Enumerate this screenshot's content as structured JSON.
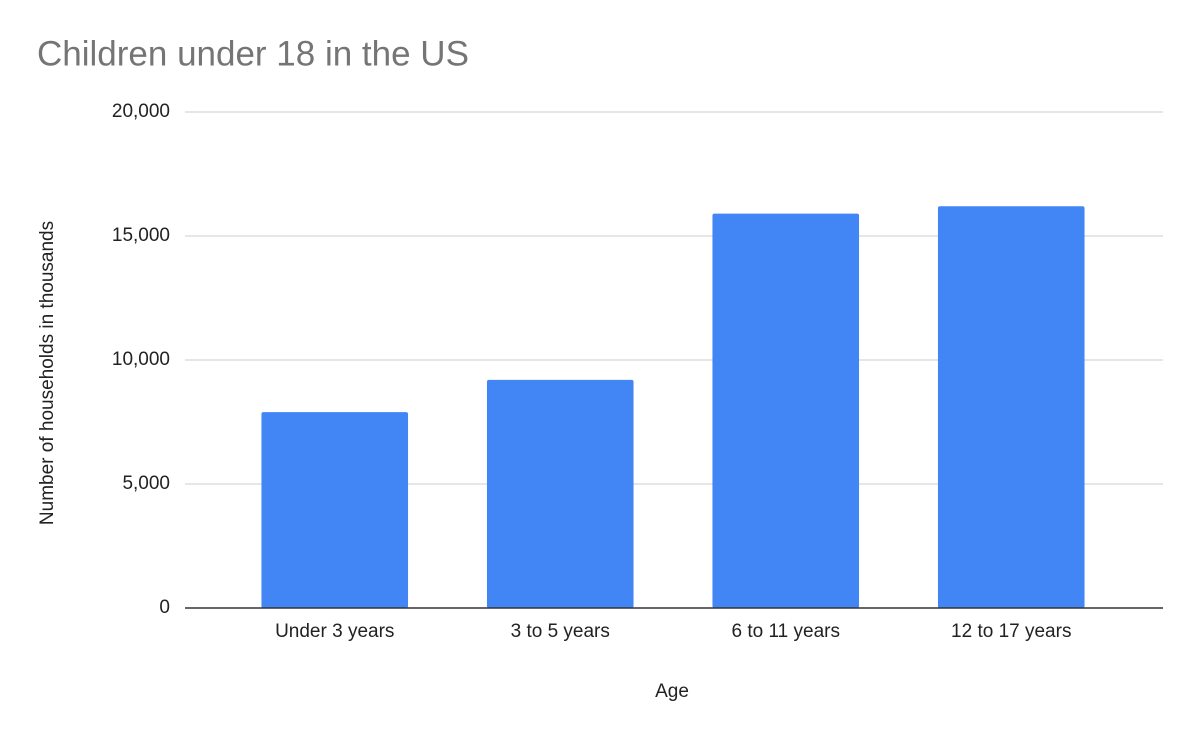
{
  "chart_data": {
    "type": "bar",
    "title": "Children under 18 in the US",
    "x_label": "Age",
    "y_label": "Number of households in thousands",
    "categories": [
      "Under 3 years",
      "3 to 5 years",
      "6 to 11 years",
      "12 to 17 years"
    ],
    "values": [
      7900,
      9200,
      15900,
      16200
    ],
    "color": "#4285f4",
    "ylim": [
      0,
      20000
    ],
    "yticks": [
      0,
      {
        "value": 5000,
        "label": "5,000"
      },
      {
        "value": 10000,
        "label": "10,000"
      },
      {
        "value": 15000,
        "label": "15,000"
      },
      {
        "value": 20000,
        "label": "20,000"
      }
    ],
    "grid": true
  }
}
